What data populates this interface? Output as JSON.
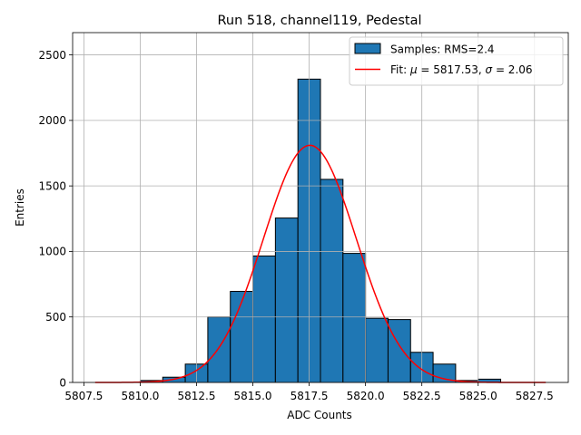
{
  "chart_data": {
    "type": "bar",
    "title": "Run 518, channel119, Pedestal",
    "xlabel": "ADC Counts",
    "ylabel": "Entries",
    "xlim": [
      5807.0,
      5829.0
    ],
    "ylim": [
      0,
      2670
    ],
    "xticks": [
      5807.5,
      5810.0,
      5812.5,
      5815.0,
      5817.5,
      5820.0,
      5822.5,
      5825.0,
      5827.5
    ],
    "xtick_labels": [
      "5807.5",
      "5810.0",
      "5812.5",
      "5815.0",
      "5817.5",
      "5820.0",
      "5822.5",
      "5825.0",
      "5827.5"
    ],
    "yticks": [
      0,
      500,
      1000,
      1500,
      2000,
      2500
    ],
    "ytick_labels": [
      "0",
      "500",
      "1000",
      "1500",
      "2000",
      "2500"
    ],
    "grid": true,
    "legend_position": "top-right",
    "histogram": {
      "name": "Samples: RMS=2.4",
      "color": "#1f77b4",
      "edge_color": "#000000",
      "bin_edges": [
        5810,
        5811,
        5812,
        5813,
        5814,
        5815,
        5816,
        5817,
        5818,
        5819,
        5820,
        5821,
        5822,
        5823,
        5824,
        5825,
        5826
      ],
      "counts": [
        15,
        40,
        140,
        500,
        695,
        965,
        1255,
        2315,
        1550,
        985,
        490,
        480,
        230,
        140,
        15,
        25
      ]
    },
    "fit": {
      "name": "Fit: μ = 5817.53, σ = 2.06",
      "legend_prefix": "Fit: ",
      "mu_symbol": "μ",
      "mu_text": " = 5817.53, ",
      "sigma_symbol": "σ",
      "sigma_text": " = 2.06",
      "color": "#ff0000",
      "mu": 5817.53,
      "sigma": 2.06,
      "amplitude": 1810,
      "x_range": [
        5808,
        5828
      ]
    }
  }
}
